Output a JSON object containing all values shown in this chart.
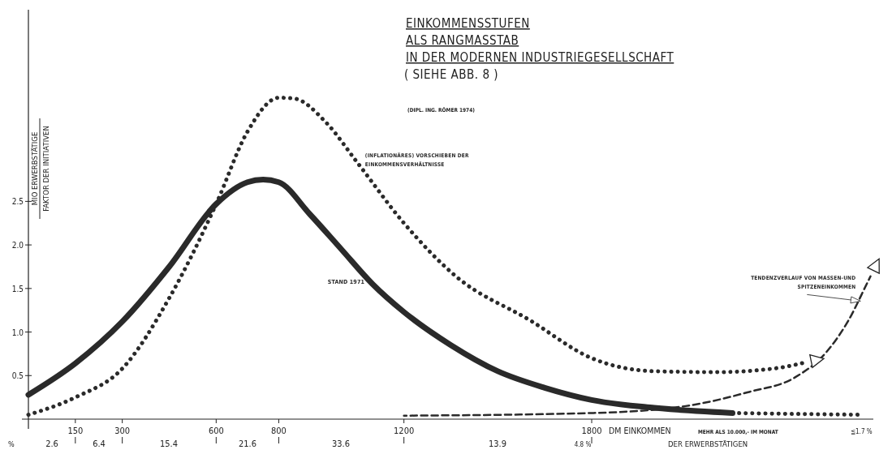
{
  "chart_data": {
    "type": "line",
    "title": "EINKOMMENSSTUFEN\nALS RANGMASSTAB\nIN DER MODERNEN INDUSTRIEGESELLSCHAFT",
    "subtitle": "( SIEHE   ABB. 8 )",
    "xlabel": "DM EINKOMMEN",
    "ylabel": "MIO ERWERBSTÄTIGE\nFAKTOR DER INITIATIVEN",
    "xlim": [
      0,
      2700
    ],
    "xticks": [
      150,
      300,
      600,
      800,
      1200,
      1800
    ],
    "ylim": [
      0,
      4.7
    ],
    "yticks": [
      {
        "value": 0.5,
        "label": "0.5"
      },
      {
        "value": 1,
        "label": "1.0"
      },
      {
        "value": 1.5,
        "label": "1.5"
      },
      {
        "value": 2,
        "label": "2.0"
      },
      {
        "value": 2.5,
        "label": "2.5"
      }
    ],
    "grid": false,
    "series": [
      {
        "name": "STAND 1971",
        "color": "#2a2a2a",
        "line_style": "solid",
        "x": [
          0,
          150,
          300,
          450,
          600,
          700,
          750,
          800,
          900,
          1000,
          1100,
          1200,
          1350,
          1500,
          1650,
          1800,
          2000,
          2250
        ],
        "values": [
          0.28,
          0.64,
          1.12,
          1.75,
          2.47,
          2.72,
          2.75,
          2.72,
          2.35,
          1.95,
          1.55,
          1.23,
          0.85,
          0.55,
          0.36,
          0.22,
          0.13,
          0.07
        ]
      },
      {
        "name": "(INFLATIONÄRES) VORSCHIEBEN DER\nEINKOMMENSVERHÄLTNISSE",
        "color": "#2a2a2a",
        "line_style": "dotted",
        "x": [
          0,
          150,
          300,
          450,
          600,
          700,
          800,
          850,
          950,
          1050,
          1200,
          1366,
          1605,
          1800,
          2000,
          2200,
          2400,
          2481
        ],
        "values": [
          0.05,
          0.25,
          0.58,
          1.39,
          2.47,
          3.3,
          3.69,
          3.68,
          3.41,
          2.95,
          2.25,
          1.64,
          1.13,
          0.7,
          0.55,
          0.54,
          0.59,
          0.65
        ]
      },
      {
        "name": "TENDENZVERLAUF VON MASSEN-UND\nSPITZENEINKOMMEN",
        "color": "#2a2a2a",
        "line_style": "dashed",
        "x": [
          1200,
          1800,
          2100,
          2300,
          2450,
          2550,
          2620,
          2680,
          2691
        ],
        "values": [
          0.04,
          0.07,
          0.15,
          0.31,
          0.48,
          0.77,
          1.13,
          1.56,
          1.64
        ]
      },
      {
        "color": "#2a2a2a",
        "line_style": "dotted",
        "x": [
          2250,
          2450,
          2660
        ],
        "values": [
          0.07,
          0.06,
          0.05
        ]
      }
    ],
    "annotations": [
      "(DIPL. ING. RÖMER 1974)",
      "MEHR ALS 10.000,-   IM MONAT",
      "≦1.7 %",
      "DER ERWERBSTÄTIGEN",
      "%",
      "2.6",
      "6.4",
      "15.4",
      "21.6",
      "33.6",
      "13.9",
      "4.8 %"
    ]
  }
}
